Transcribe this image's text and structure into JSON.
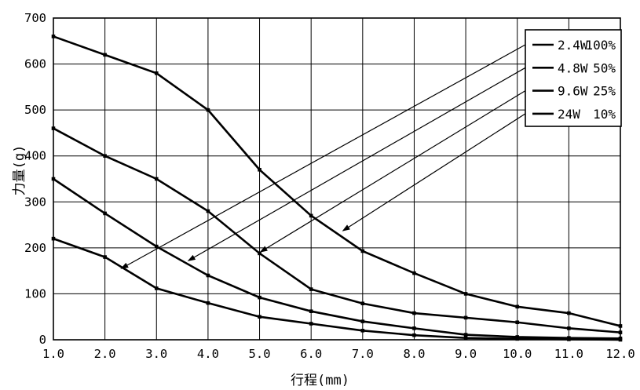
{
  "page": {
    "background_color": "#ffffff",
    "line_color": "#000000"
  },
  "chart_data": {
    "type": "line",
    "title": "",
    "xlabel": "行程(mm)",
    "ylabel": "力量(g)",
    "xlim": [
      1,
      12
    ],
    "ylim": [
      0,
      700
    ],
    "grid": true,
    "legend_position": "top-right",
    "x": [
      1,
      2,
      3,
      4,
      5,
      6,
      7,
      8,
      9,
      10,
      11,
      12
    ],
    "x_tick_labels": [
      "1.0",
      "2.0",
      "3.0",
      "4.0",
      "5.0",
      "6.0",
      "7.0",
      "8.0",
      "9.0",
      "10.0",
      "11.0",
      "12.0"
    ],
    "y_ticks": [
      0,
      100,
      200,
      300,
      400,
      500,
      600,
      700
    ],
    "series": [
      {
        "name": "2.4W",
        "duty": "100%",
        "values": [
          220,
          180,
          112,
          80,
          50,
          35,
          20,
          10,
          4,
          2,
          1,
          0
        ],
        "arrow_target": {
          "x": 2.3,
          "y": 154
        }
      },
      {
        "name": "4.8W",
        "duty": "50%",
        "values": [
          350,
          275,
          203,
          140,
          92,
          62,
          40,
          25,
          11,
          6,
          4,
          3
        ],
        "arrow_target": {
          "x": 3.6,
          "y": 171
        }
      },
      {
        "name": "9.6W",
        "duty": "25%",
        "values": [
          460,
          400,
          350,
          280,
          188,
          110,
          79,
          58,
          48,
          38,
          25,
          16
        ],
        "arrow_target": {
          "x": 5.0,
          "y": 190
        }
      },
      {
        "name": "24W",
        "duty": "10%",
        "values": [
          660,
          620,
          580,
          500,
          370,
          270,
          193,
          145,
          100,
          72,
          58,
          30
        ],
        "arrow_target": {
          "x": 6.6,
          "y": 236
        }
      }
    ]
  }
}
